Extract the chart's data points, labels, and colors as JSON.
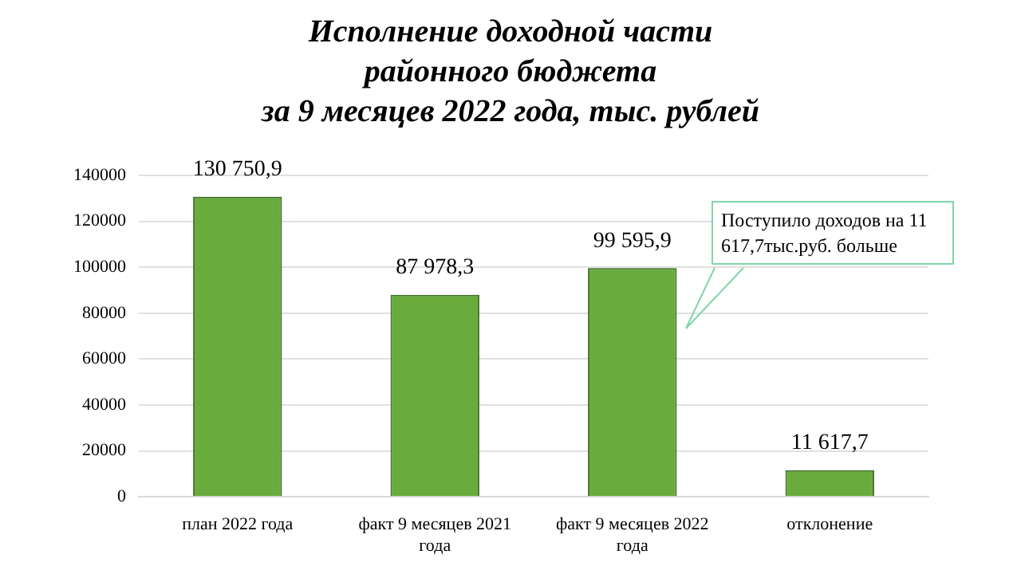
{
  "chart_data": {
    "type": "bar",
    "title": "Исполнение доходной части\nрайонного бюджета\nза 9 месяцев 2022 года, тыс. рублей",
    "categories": [
      "план 2022 года",
      "факт 9 месяцев 2021 года",
      "факт 9 месяцев 2022 года",
      "отклонение"
    ],
    "values": [
      130750.9,
      87978.3,
      99595.9,
      11617.7
    ],
    "value_labels": [
      "130 750,9",
      "87 978,3",
      "99 595,9",
      "11 617,7"
    ],
    "color": "#6aab3e",
    "ylim": [
      0,
      140000
    ],
    "yticks": [
      0,
      20000,
      40000,
      60000,
      80000,
      100000,
      120000,
      140000
    ],
    "grid": "y",
    "legend": false,
    "annotations": [
      "Поступило  доходов на 11 617,7тыс.руб.  больше"
    ]
  }
}
